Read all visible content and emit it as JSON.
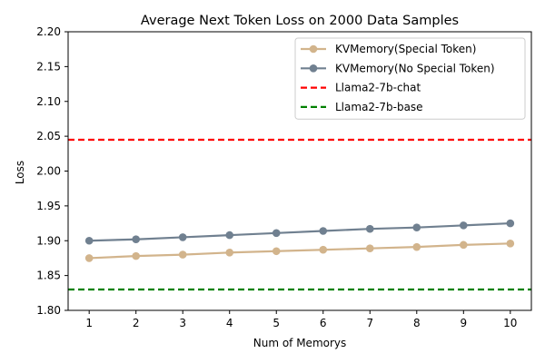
{
  "chart_data": {
    "type": "line",
    "title": "Average Next Token Loss on 2000 Data Samples",
    "xlabel": "Num of Memorys",
    "ylabel": "Loss",
    "xlim": [
      0.55,
      10.45
    ],
    "ylim": [
      1.8,
      2.2
    ],
    "x": [
      1,
      2,
      3,
      4,
      5,
      6,
      7,
      8,
      9,
      10
    ],
    "xticks": [
      "1",
      "2",
      "3",
      "4",
      "5",
      "6",
      "7",
      "8",
      "9",
      "10"
    ],
    "yticks": [
      "1.80",
      "1.85",
      "1.90",
      "1.95",
      "2.00",
      "2.05",
      "2.10",
      "2.15",
      "2.20"
    ],
    "series": [
      {
        "name": "KVMemory(Special Token)",
        "color": "#d2b48c",
        "style": "solid-marker",
        "values": [
          1.875,
          1.878,
          1.88,
          1.883,
          1.885,
          1.887,
          1.889,
          1.891,
          1.894,
          1.896
        ]
      },
      {
        "name": "KVMemory(No Special Token)",
        "color": "#708090",
        "style": "solid-marker",
        "values": [
          1.9,
          1.902,
          1.905,
          1.908,
          1.911,
          1.914,
          1.917,
          1.919,
          1.922,
          1.925
        ]
      }
    ],
    "reference_lines": [
      {
        "name": "Llama2-7b-chat",
        "color": "#ff0000",
        "style": "dashed",
        "value": 2.045
      },
      {
        "name": "Llama2-7b-base",
        "color": "#008000",
        "style": "dashed",
        "value": 1.83
      }
    ],
    "legend_position": "top-right",
    "grid": false
  }
}
